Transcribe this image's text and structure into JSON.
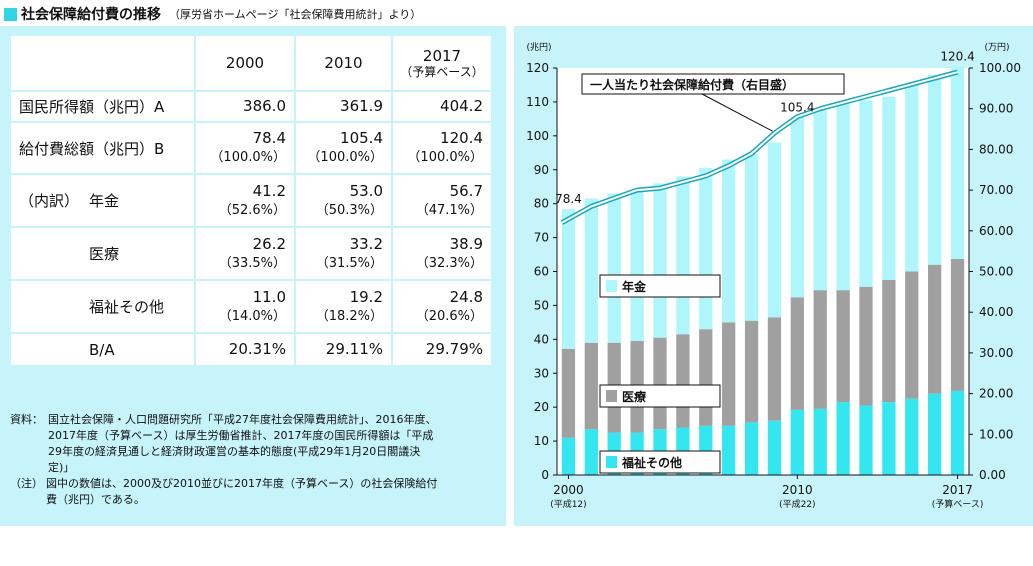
{
  "page": {
    "title": "社会保障給付費の推移",
    "subtitle": "（厚労省ホームページ「社会保障費用統計」より）",
    "accent_color": "#2fd6e6"
  },
  "table": {
    "years": [
      {
        "label": "2000",
        "sub": ""
      },
      {
        "label": "2010",
        "sub": ""
      },
      {
        "label": "2017",
        "sub": "（予算ベース）"
      }
    ],
    "national_income": {
      "label": "国民所得額（兆円）A",
      "values": [
        "386.0",
        "361.9",
        "404.2"
      ]
    },
    "total_benefit": {
      "label": "給付費総額（兆円）B",
      "values": [
        "78.4",
        "105.4",
        "120.4"
      ],
      "pcts": [
        "（100.0%）",
        "（100.0%）",
        "（100.0%）"
      ]
    },
    "breakdown_label": "（内訳）",
    "pension": {
      "label": "年金",
      "values": [
        "41.2",
        "53.0",
        "56.7"
      ],
      "pcts": [
        "（52.6%）",
        "（50.3%）",
        "（47.1%）"
      ]
    },
    "medical": {
      "label": "医療",
      "values": [
        "26.2",
        "33.2",
        "38.9"
      ],
      "pcts": [
        "（33.5%）",
        "（31.5%）",
        "（32.3%）"
      ]
    },
    "welfare": {
      "label": "福祉その他",
      "values": [
        "11.0",
        "19.2",
        "24.8"
      ],
      "pcts": [
        "（14.0%）",
        "（18.2%）",
        "（20.6%）"
      ]
    },
    "ratio": {
      "label": "B/A",
      "values": [
        "20.31%",
        "29.11%",
        "29.79%"
      ]
    }
  },
  "notes": {
    "source_key": "資料：",
    "source_lines": [
      "国立社会保障・人口問題研究所「平成27年度社会保障費用統計」、2016年度、",
      "2017年度（予算ベース）は厚生労働省推計、2017年度の国民所得額は「平成",
      "29年度の経済見通しと経済財政運営の基本的態度(平成29年1月20日閣議決",
      "定)」"
    ],
    "note_key": "（注）",
    "note_lines": [
      "図中の数値は、2000及び2010並びに2017年度（予算ベース）の社会保険給付",
      "費（兆円）である。"
    ]
  },
  "chart_data": {
    "type": "bar",
    "stacked": true,
    "years": [
      2000,
      2001,
      2002,
      2003,
      2004,
      2005,
      2006,
      2007,
      2008,
      2009,
      2010,
      2011,
      2012,
      2013,
      2014,
      2015,
      2016,
      2017
    ],
    "series": [
      {
        "name": "福祉その他",
        "color": "#33e6f0",
        "values": [
          11.0,
          13.5,
          12.5,
          12.5,
          13.5,
          14.0,
          14.5,
          14.5,
          15.5,
          16.0,
          19.2,
          19.5,
          21.5,
          20.5,
          21.5,
          22.5,
          24.0,
          24.8
        ]
      },
      {
        "name": "医療",
        "color": "#a0a0a0",
        "values": [
          26.2,
          25.5,
          26.5,
          27.0,
          27.0,
          27.5,
          28.5,
          30.5,
          30.0,
          30.5,
          33.2,
          35.0,
          33.0,
          35.0,
          36.0,
          37.5,
          38.0,
          38.9
        ]
      },
      {
        "name": "年金",
        "color": "#aef6fb",
        "values": [
          41.2,
          42.5,
          44.0,
          44.5,
          45.5,
          46.5,
          47.5,
          48.0,
          49.0,
          51.5,
          53.0,
          53.0,
          55.0,
          55.0,
          54.0,
          55.0,
          56.0,
          56.7
        ]
      }
    ],
    "per_capita_line": {
      "name": "一人当たり社会保障給付費（右目盛）",
      "values": [
        62.0,
        66.0,
        68.0,
        70.0,
        70.5,
        72.0,
        73.5,
        76.0,
        79.0,
        84.0,
        88.0,
        90.0,
        91.5,
        93.0,
        94.5,
        96.0,
        97.5,
        99.0
      ]
    },
    "data_labels": [
      {
        "year": 2000,
        "text": "78.4"
      },
      {
        "year": 2010,
        "text": "105.4"
      },
      {
        "year": 2017,
        "text": "120.4"
      }
    ],
    "y_left": {
      "unit": "(兆円)",
      "min": 0,
      "max": 120,
      "ticks": [
        "0",
        "10",
        "20",
        "30",
        "40",
        "50",
        "60",
        "70",
        "80",
        "90",
        "100",
        "110",
        "120"
      ]
    },
    "y_right": {
      "unit": "(万円)",
      "min": 0,
      "max": 100,
      "ticks": [
        "0.00",
        "10.00",
        "20.00",
        "30.00",
        "40.00",
        "50.00",
        "60.00",
        "70.00",
        "80.00",
        "90.00",
        "100.00"
      ]
    },
    "x_labels": [
      {
        "year": 2000,
        "label": "2000",
        "sub": "(平成12)"
      },
      {
        "year": 2010,
        "label": "2010",
        "sub": "(平成22)"
      },
      {
        "year": 2017,
        "label": "2017",
        "sub": "(予算ベース)"
      }
    ],
    "legend": [
      {
        "text": "年金",
        "color": "#aef6fb"
      },
      {
        "text": "医療",
        "color": "#a0a0a0"
      },
      {
        "text": "福祉その他",
        "color": "#33e6f0"
      }
    ]
  }
}
